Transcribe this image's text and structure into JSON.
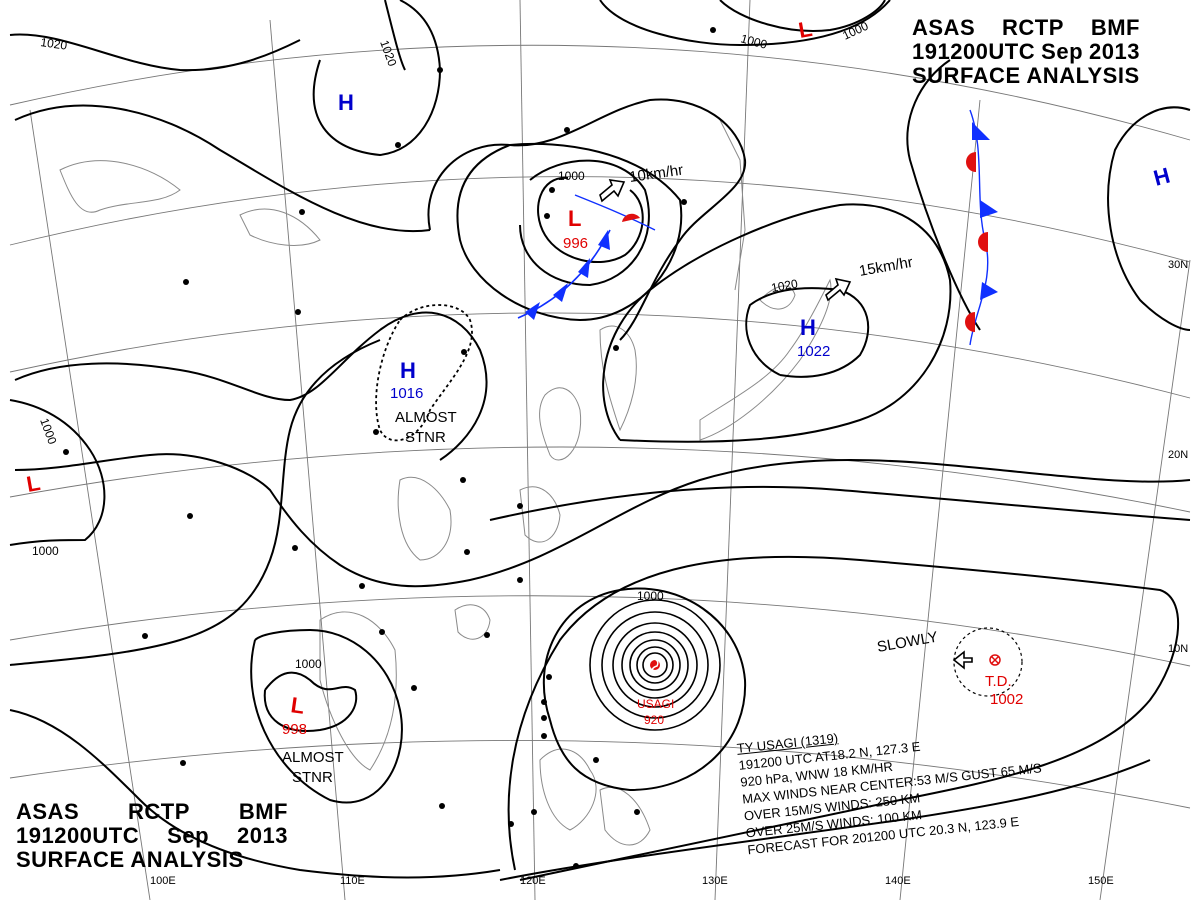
{
  "header": {
    "line1": [
      "ASAS",
      "RCTP",
      "BMF"
    ],
    "line2": [
      "191200UTC",
      "Sep",
      "2013"
    ],
    "line3": "SURFACE  ANALYSIS"
  },
  "isobar_labels": [
    "1020",
    "1020",
    "1000",
    "1000",
    "1000",
    "1020",
    "1000",
    "1000",
    "1000",
    "1000"
  ],
  "pressure_centers": [
    {
      "type": "H",
      "value": ""
    },
    {
      "type": "L",
      "value": "996"
    },
    {
      "type": "H",
      "value": "1016"
    },
    {
      "type": "H",
      "value": "1022"
    },
    {
      "type": "L",
      "value": ""
    },
    {
      "type": "L",
      "value": ""
    },
    {
      "type": "H",
      "value": ""
    },
    {
      "type": "L",
      "value": "998"
    }
  ],
  "motion_labels": {
    "low_speed": "10km/hr",
    "high_speed": "15km/hr",
    "td_motion": "SLOWLY",
    "stationary": "ALMOST",
    "stationary2": "STNR"
  },
  "typhoon": {
    "name": "USAGI",
    "pressure": "920"
  },
  "tropical_depression": {
    "label": "T.D.",
    "pressure": "1002"
  },
  "lat_labels": [
    "30N",
    "20N",
    "10N"
  ],
  "lon_labels": [
    "100E",
    "110E",
    "120E",
    "130E",
    "140E",
    "150E"
  ],
  "typhoon_info": {
    "line1": "TY  USAGI  (1319)",
    "line2": "191200  UTC  AT18.2 N, 127.3 E",
    "line3": "920 hPa, WNW  18 KM/HR",
    "line4": "MAX WINDS NEAR CENTER:53 M/S GUST 65 M/S",
    "line5": "OVER 15M/S WINDS: 250 KM",
    "line6": "OVER 25M/S WINDS: 100 KM",
    "line7": "FORECAST FOR 201200 UTC 20.3 N, 123.9 E"
  },
  "colors": {
    "high": "#0000cc",
    "low": "#e00000",
    "cold_front": "#1030ff",
    "warm_front": "#e01010",
    "isobar": "#000000",
    "coast": "#888888"
  }
}
